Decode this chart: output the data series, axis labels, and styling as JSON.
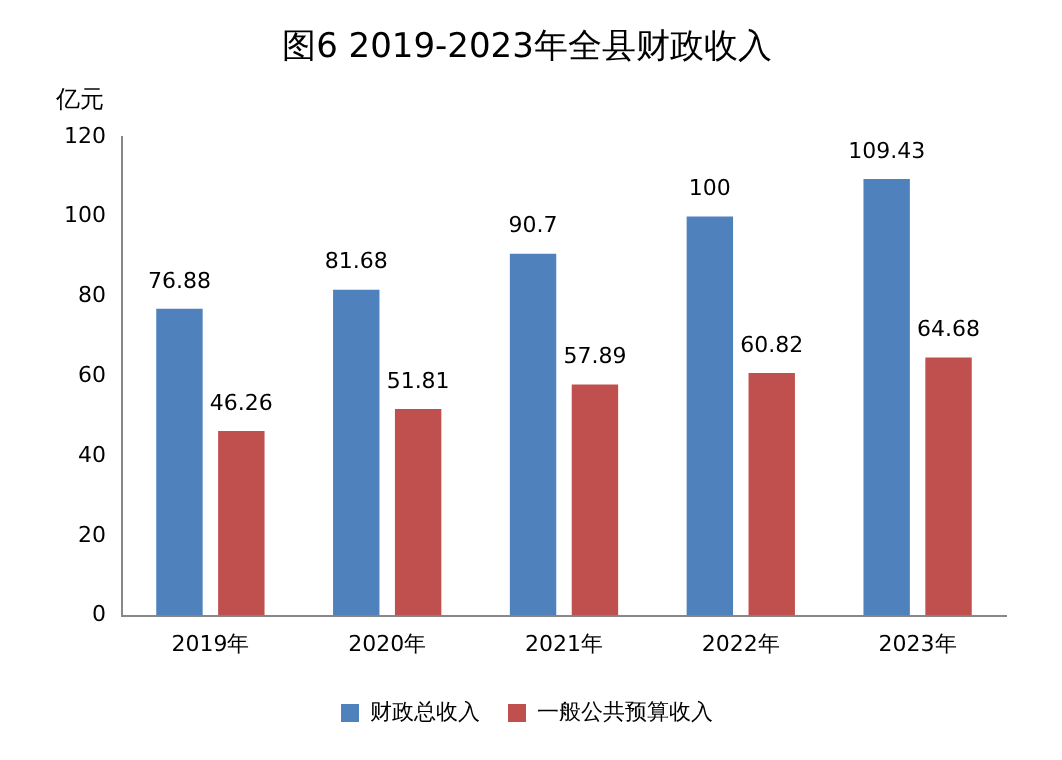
{
  "chart_data": {
    "type": "bar",
    "title": "图6 2019-2023年全县财政收入",
    "ylabel": "亿元",
    "categories": [
      "2019年",
      "2020年",
      "2021年",
      "2022年",
      "2023年"
    ],
    "series": [
      {
        "name": "财政总收入",
        "color": "#4f81bd",
        "values": [
          76.88,
          81.68,
          90.7,
          100,
          109.43
        ]
      },
      {
        "name": "一般公共预算收入",
        "color": "#c0504d",
        "values": [
          46.26,
          51.81,
          57.89,
          60.82,
          64.68
        ]
      }
    ],
    "ylim": [
      0,
      120
    ],
    "yticks": [
      0,
      20,
      40,
      60,
      80,
      100,
      120
    ],
    "grid": false,
    "legend": "bottom",
    "data_labels": true
  }
}
